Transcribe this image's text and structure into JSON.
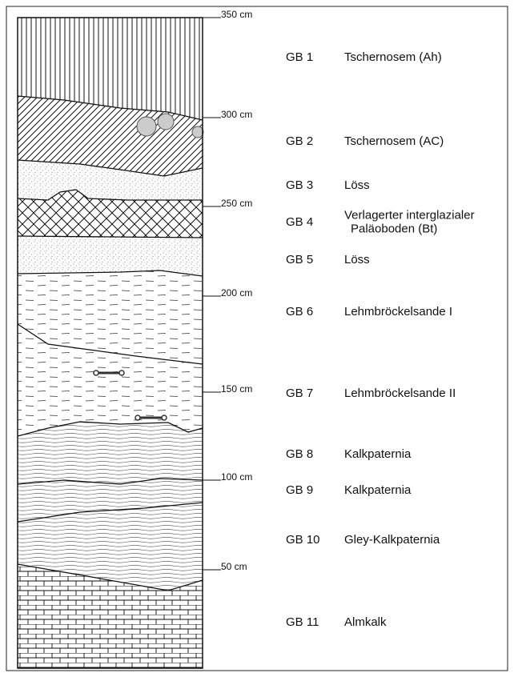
{
  "depths": [
    "350 cm",
    "300 cm",
    "250 cm",
    "200 cm",
    "150 cm",
    "100 cm",
    "50 cm"
  ],
  "layers": [
    {
      "id": "GB 1",
      "name_lines": [
        "Tschernosem (Ah)"
      ]
    },
    {
      "id": "GB 2",
      "name_lines": [
        "Tschernosem (AC)"
      ]
    },
    {
      "id": "GB 3",
      "name_lines": [
        "Löss"
      ]
    },
    {
      "id": "GB 4",
      "name_lines": [
        "Verlagerter interglazialer",
        "Paläoboden (Bt)"
      ]
    },
    {
      "id": "GB 5",
      "name_lines": [
        "Löss"
      ]
    },
    {
      "id": "GB 6",
      "name_lines": [
        "Lehmbröckelsande I"
      ]
    },
    {
      "id": "GB 7",
      "name_lines": [
        "Lehmbröckelsande II"
      ]
    },
    {
      "id": "GB 8",
      "name_lines": [
        "Kalkpaternia"
      ]
    },
    {
      "id": "GB 9",
      "name_lines": [
        "Kalkpaternia"
      ]
    },
    {
      "id": "GB 10",
      "name_lines": [
        "Gley-Kalkpaternia"
      ]
    },
    {
      "id": "GB 11",
      "name_lines": [
        "Almkalk"
      ]
    }
  ]
}
